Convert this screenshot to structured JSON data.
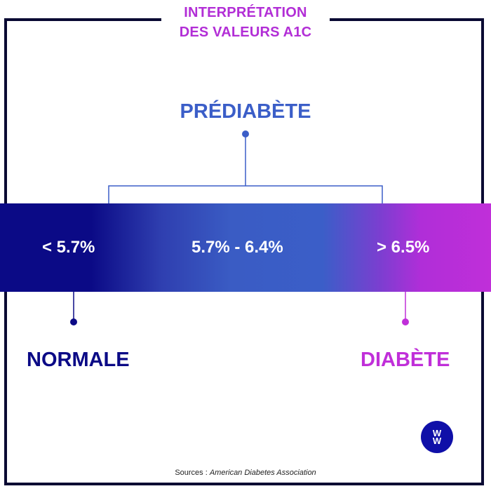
{
  "title": {
    "line1": "INTERPRÉTATION",
    "line2": "DES VALEURS A1C"
  },
  "ranges": {
    "normal": "< 5.7%",
    "prediabetes": "5.7% - 6.4%",
    "diabetes": "> 6.5%"
  },
  "labels": {
    "prediabetes": "PRÉDIABÈTE",
    "normal": "NORMALE",
    "diabetes": "DIABÈTE"
  },
  "source": {
    "prefix": "Sources : ",
    "name": "American Diabetes Association"
  },
  "logo": {
    "text1": "W",
    "text2": "W"
  },
  "colors": {
    "normal": "#0b0a86",
    "prediabetes": "#3b5ec8",
    "diabetes": "#c02fd9",
    "frame": "#0a0a33"
  }
}
